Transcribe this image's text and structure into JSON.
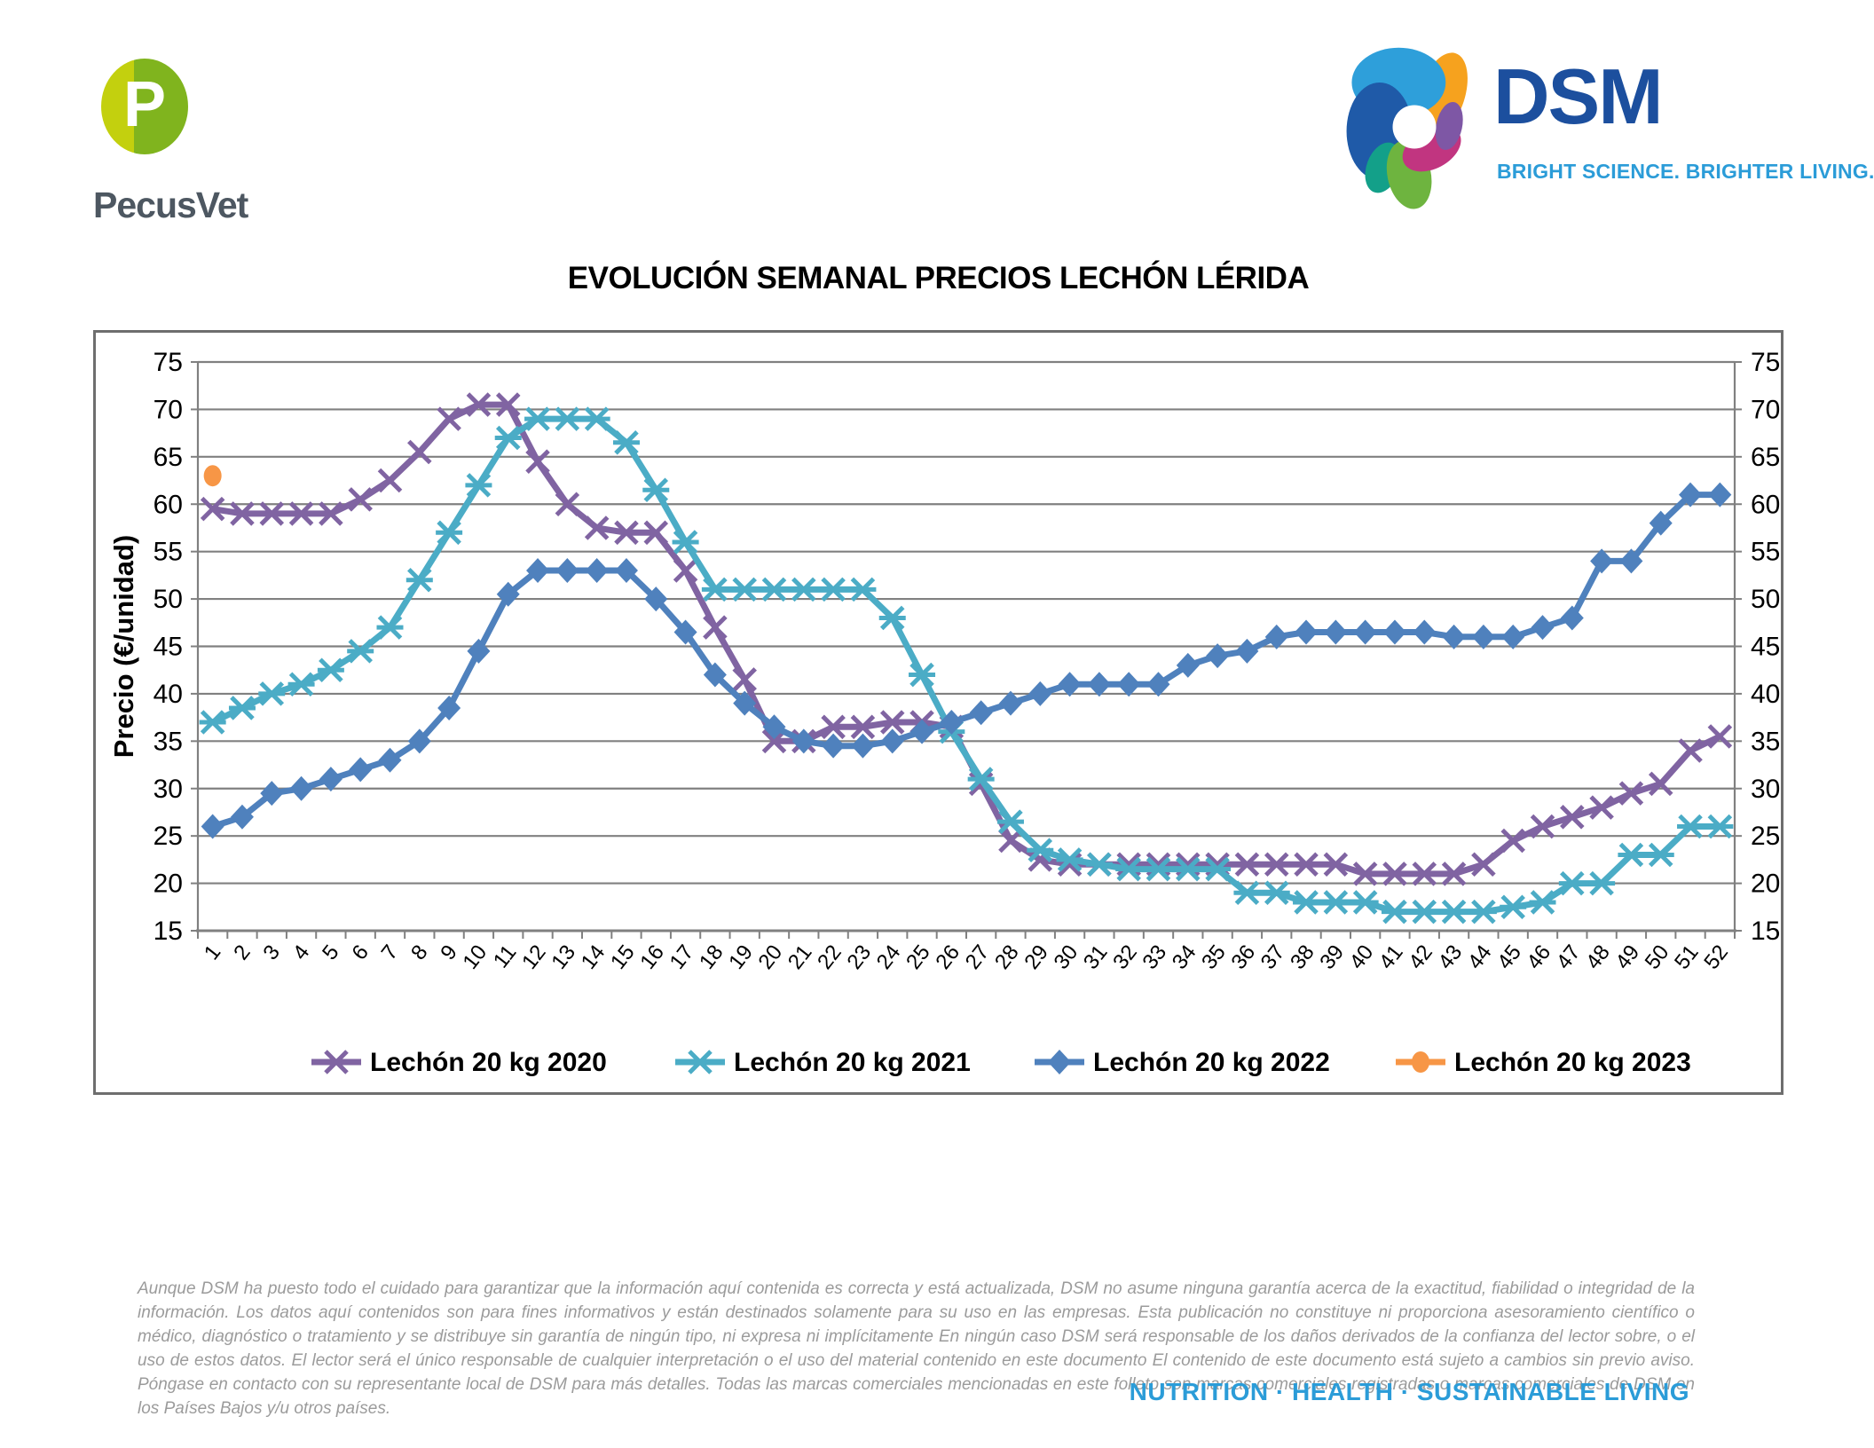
{
  "page": {
    "title": "EVOLUCIÓN SEMANAL PRECIOS LECHÓN LÉRIDA",
    "pecusvet": {
      "letter": "P",
      "name": "PecusVet"
    },
    "dsm": {
      "name": "DSM",
      "tagline": "BRIGHT SCIENCE. BRIGHTER LIVING."
    },
    "disclaimer": "Aunque DSM ha puesto todo el cuidado para garantizar que la información aquí contenida es correcta y está actualizada, DSM no asume ninguna garantía acerca de la exactitud, fiabilidad o integridad de la información. Los datos aquí contenidos son para fines informativos y están destinados solamente para su uso en las empresas. Esta publicación no constituye ni proporciona asesoramiento científico o médico, diagnóstico o tratamiento y se distribuye sin garantía de ningún tipo, ni expresa ni implícitamente En ningún caso DSM será responsable de los daños derivados de la confianza del lector sobre, o el uso de estos datos. El lector será el único responsable de cualquier interpretación o el uso del material contenido en este documento El contenido de este documento está sujeto a cambios sin previo aviso. Póngase en contacto con su representante local de DSM para más detalles. Todas las marcas comerciales mencionadas en este folleto son marcas comerciales registradas o marcas comerciales de DSM en los Países Bajos y/u otros países.",
    "footer_tagline": "NUTRITION · HEALTH · SUSTAINABLE LIVING"
  },
  "colors": {
    "series_2020": "#8064A2",
    "series_2021": "#4BACC6",
    "series_2022": "#4F81BD",
    "series_2023": "#F79646",
    "gridline": "#808080",
    "axis_text": "#000000",
    "dsm_blue": "#1C4F9E",
    "dsm_light_blue": "#2B9CD8",
    "pecusvet_yellow_green": "#C3D00E",
    "pecusvet_green": "#80B41E",
    "disclaimer_gray": "#9B9B9B"
  },
  "chart_data": {
    "type": "line",
    "title": "EVOLUCIÓN SEMANAL PRECIOS LECHÓN LÉRIDA",
    "xlabel": "",
    "ylabel": "Precio (€/unidad)",
    "ylim": [
      15,
      75
    ],
    "yticks": [
      75,
      70,
      65,
      60,
      55,
      50,
      45,
      40,
      35,
      30,
      25,
      20,
      15
    ],
    "grid": true,
    "legend_position": "bottom",
    "x": [
      1,
      2,
      3,
      4,
      5,
      6,
      7,
      8,
      9,
      10,
      11,
      12,
      13,
      14,
      15,
      16,
      17,
      18,
      19,
      20,
      21,
      22,
      23,
      24,
      25,
      26,
      27,
      28,
      29,
      30,
      31,
      32,
      33,
      34,
      35,
      36,
      37,
      38,
      39,
      40,
      41,
      42,
      43,
      44,
      45,
      46,
      47,
      48,
      49,
      50,
      51,
      52
    ],
    "series": [
      {
        "name": "Lechón 20 kg 2020",
        "color": "#8064A2",
        "marker": "x",
        "values": [
          59.5,
          59,
          59,
          59,
          59,
          60.5,
          62.5,
          65.5,
          69,
          70.5,
          70.5,
          64.5,
          60,
          57.5,
          57,
          57,
          53,
          47,
          41.5,
          35,
          35,
          36.5,
          36.5,
          37,
          37,
          36.5,
          30.5,
          24.5,
          22.5,
          22,
          22,
          22,
          22,
          22,
          22,
          22,
          22,
          22,
          22,
          21,
          21,
          21,
          21,
          22,
          24.5,
          26,
          27,
          28,
          29.5,
          30.5,
          34,
          35.5
        ]
      },
      {
        "name": "Lechón 20 kg 2021",
        "color": "#4BACC6",
        "marker": "asterisk",
        "values": [
          37,
          38.5,
          40,
          41,
          42.5,
          44.5,
          47,
          52,
          57,
          62,
          67,
          69,
          69,
          69,
          66.5,
          61.5,
          56,
          51,
          51,
          51,
          51,
          51,
          51,
          48,
          42,
          36,
          31,
          26.5,
          23.5,
          22.5,
          22,
          21.5,
          21.5,
          21.5,
          21.5,
          19,
          19,
          18,
          18,
          18,
          17,
          17,
          17,
          17,
          17.5,
          18,
          20,
          20,
          23,
          23,
          26,
          26
        ]
      },
      {
        "name": "Lechón 20 kg 2022",
        "color": "#4F81BD",
        "marker": "diamond",
        "values": [
          26,
          27,
          29.5,
          30,
          31,
          32,
          33,
          35,
          38.5,
          44.5,
          50.5,
          53,
          53,
          53,
          53,
          50,
          46.5,
          42,
          39,
          36.5,
          35,
          34.5,
          34.5,
          35,
          36,
          37,
          38,
          39,
          40,
          41,
          41,
          41,
          41,
          43,
          44,
          44.5,
          46,
          46.5,
          46.5,
          46.5,
          46.5,
          46.5,
          46,
          46,
          46,
          47,
          48,
          54,
          54,
          58,
          61,
          61
        ]
      },
      {
        "name": "Lechón 20 kg 2023",
        "color": "#F79646",
        "marker": "circle",
        "values": [
          63,
          null,
          null,
          null,
          null,
          null,
          null,
          null,
          null,
          null,
          null,
          null,
          null,
          null,
          null,
          null,
          null,
          null,
          null,
          null,
          null,
          null,
          null,
          null,
          null,
          null,
          null,
          null,
          null,
          null,
          null,
          null,
          null,
          null,
          null,
          null,
          null,
          null,
          null,
          null,
          null,
          null,
          null,
          null,
          null,
          null,
          null,
          null,
          null,
          null,
          null,
          null
        ]
      }
    ]
  }
}
